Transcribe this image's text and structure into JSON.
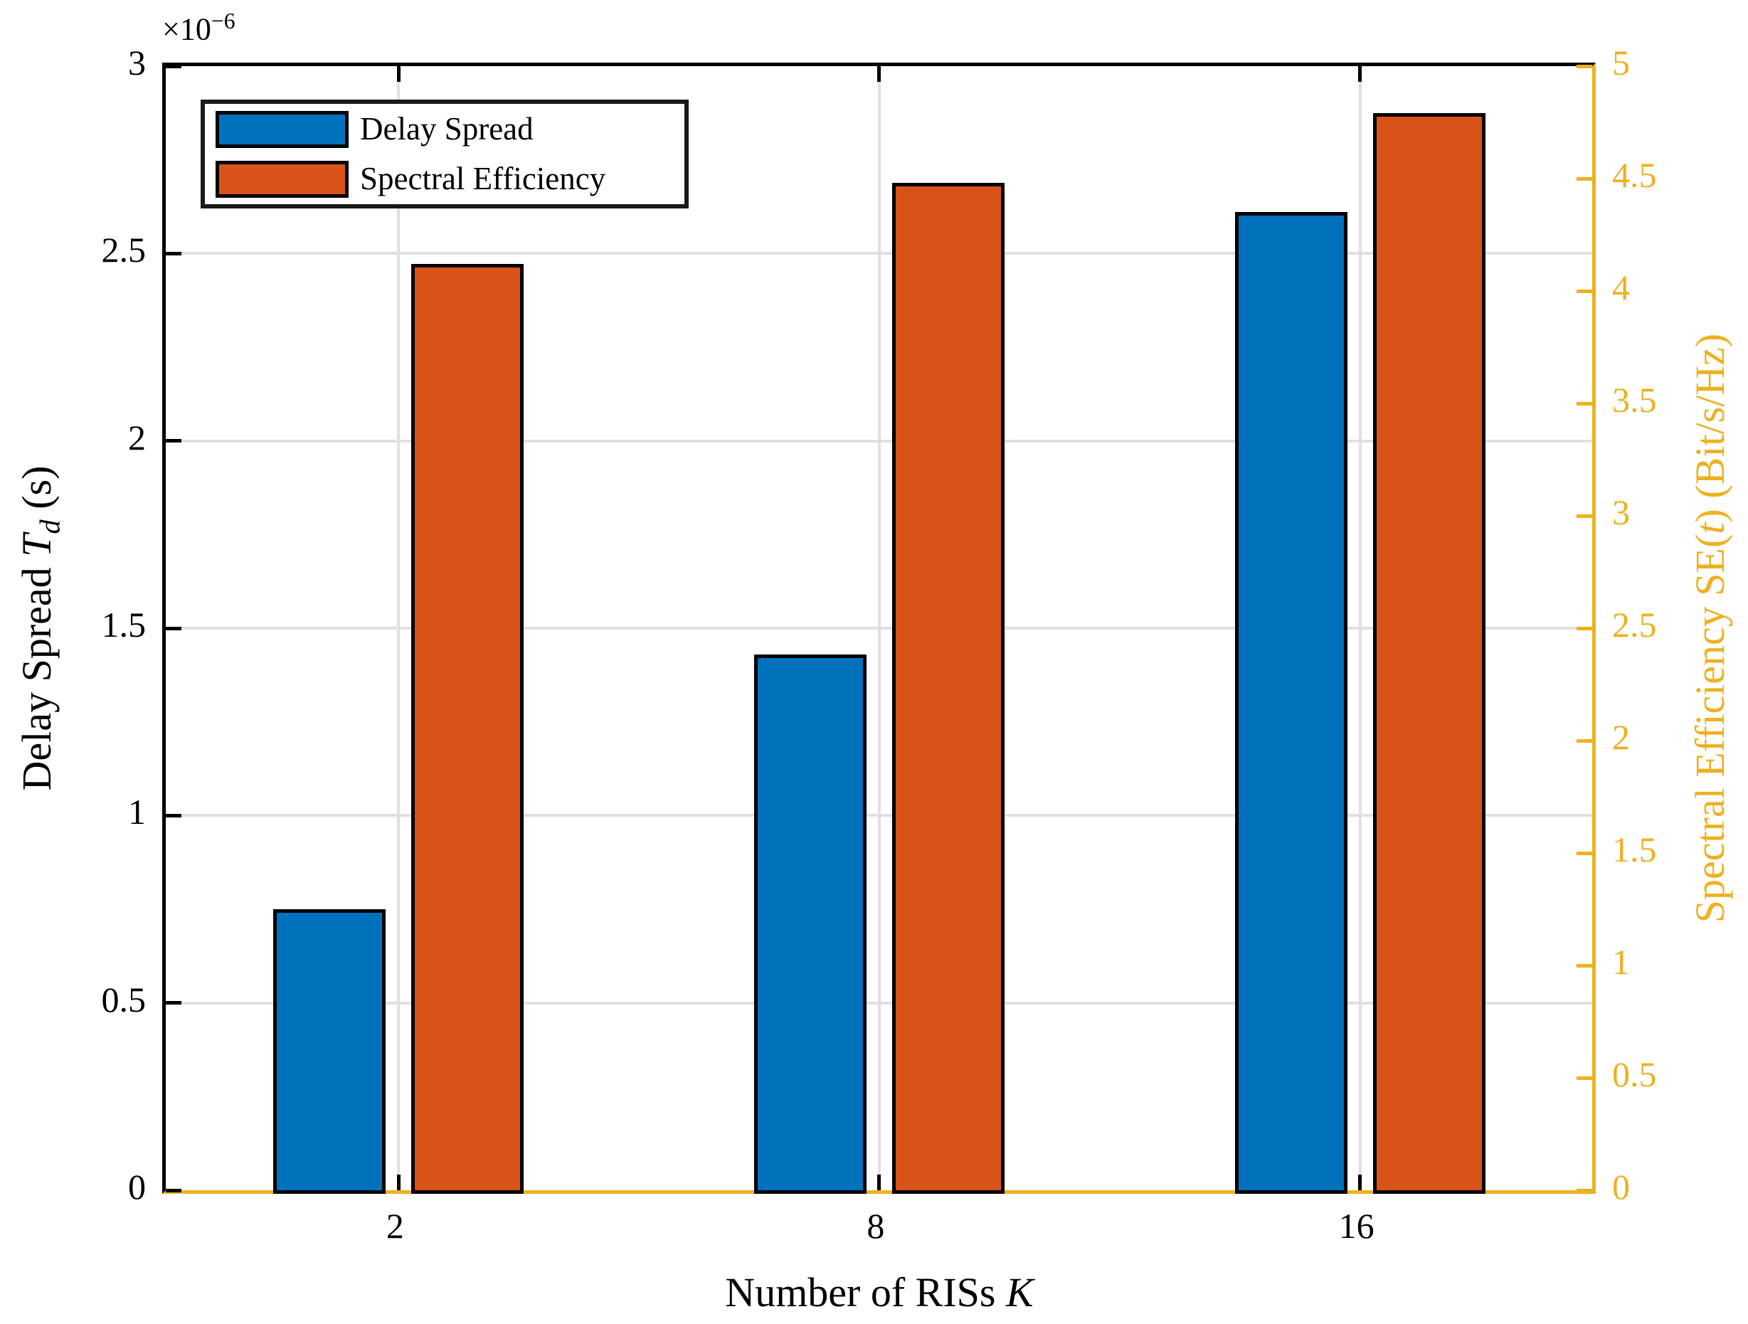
{
  "figure": {
    "background": "#FFFFFF"
  },
  "chart_data": {
    "type": "bar",
    "title": "",
    "categories": [
      "2",
      "8",
      "16"
    ],
    "series": [
      {
        "name": "Delay Spread",
        "yaxis": "left",
        "color": "#0072BD",
        "values": [
          0.75,
          1.43,
          2.61
        ],
        "value_scale": "1e-6",
        "unit": "s"
      },
      {
        "name": "Spectral Efficiency",
        "yaxis": "right",
        "color": "#D95319",
        "values": [
          4.12,
          4.48,
          4.79
        ],
        "unit": "Bit/s/Hz"
      }
    ],
    "x_axis": {
      "label_prefix": "Number of RISs ",
      "label_var": "K",
      "tick_labels": [
        "2",
        "8",
        "16"
      ]
    },
    "left_axis": {
      "label_prefix": "Delay Spread ",
      "label_var": "T",
      "label_var_sub": "d",
      "label_suffix": " (s)",
      "exponent_base": "×10",
      "exponent_power": "−6",
      "range": [
        0,
        3
      ],
      "tick_labels": [
        "0",
        "0.5",
        "1",
        "1.5",
        "2",
        "2.5",
        "3"
      ],
      "color": "#000000"
    },
    "right_axis": {
      "label_prefix": "Spectral Efficiency SE(",
      "label_var": "t",
      "label_suffix": ") (Bit/s/Hz)",
      "range": [
        0,
        5
      ],
      "tick_labels": [
        "0",
        "0.5",
        "1",
        "1.5",
        "2",
        "2.5",
        "3",
        "3.5",
        "4",
        "4.5",
        "5"
      ],
      "color": "#EDB120"
    },
    "grid": {
      "show": true,
      "color": "#E0E0E0"
    },
    "legend": {
      "position": "top-left",
      "entries": [
        {
          "label": "Delay Spread",
          "color": "#0072BD"
        },
        {
          "label": "Spectral Efficiency",
          "color": "#D95319"
        }
      ]
    }
  }
}
